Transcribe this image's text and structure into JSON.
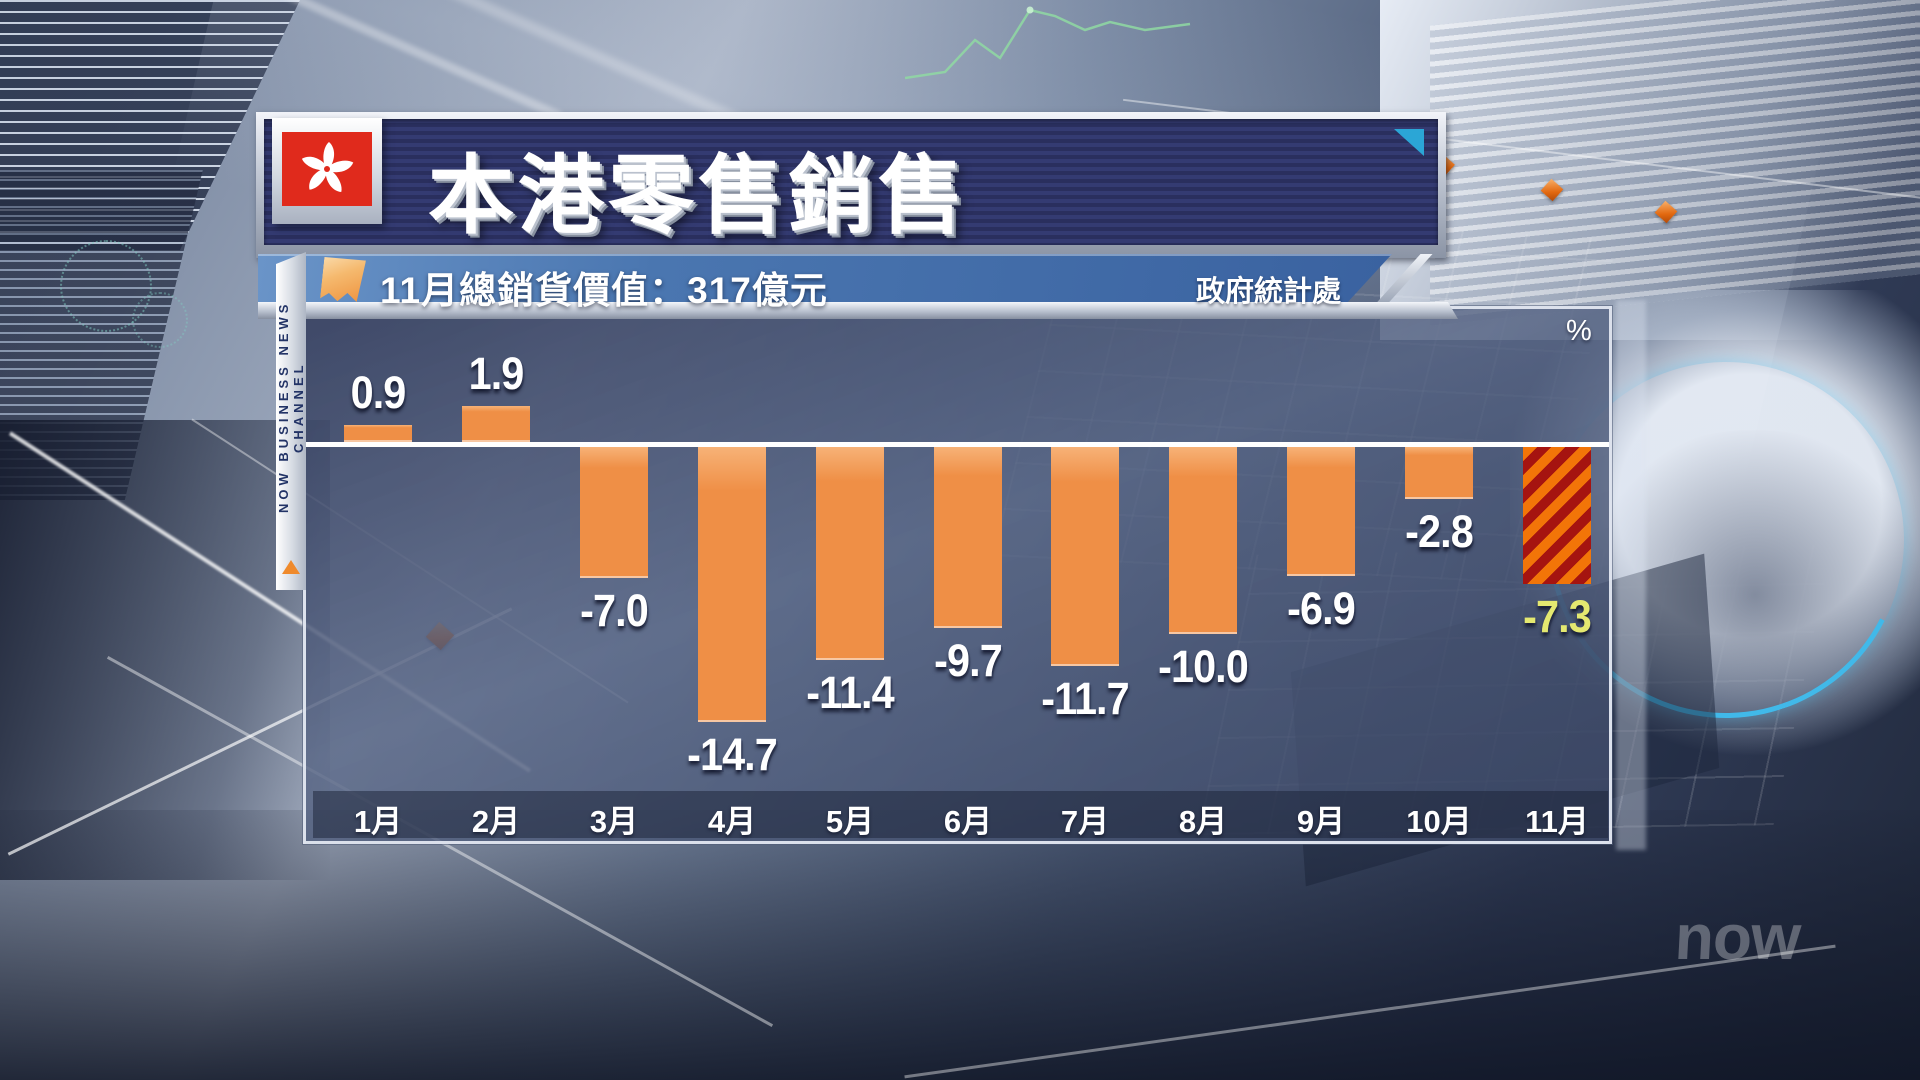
{
  "header": {
    "title": "本港零售銷售"
  },
  "subheader": {
    "highlight_text": "11月總銷貨價值：317億元",
    "source": "政府統計處"
  },
  "sidebar": {
    "channel_label": "NOW BUSINESS NEWS CHANNEL"
  },
  "watermark": {
    "logo_text": "now"
  },
  "chart_data": {
    "type": "bar",
    "title": "本港零售銷售",
    "unit_label": "%",
    "categories": [
      "1月",
      "2月",
      "3月",
      "4月",
      "5月",
      "6月",
      "7月",
      "8月",
      "9月",
      "10月",
      "11月"
    ],
    "values": [
      0.9,
      1.9,
      -7.0,
      -14.7,
      -11.4,
      -9.7,
      -11.7,
      -10.0,
      -6.9,
      -2.8,
      -7.3
    ],
    "highlight_index": 10,
    "ylim": [
      -16,
      3
    ],
    "grid": false,
    "legend": "none",
    "colors": {
      "bar": "#EF8F46",
      "bar_light": "#F7B277",
      "highlight_bg": "#F27508",
      "highlight_stripe": "#A51410",
      "highlight_label": "#E4E870",
      "label": "#FFFFFF",
      "zero_line": "#FFFFFF",
      "subbar_blue": "#4A76B0",
      "title_navy": "#2E3166",
      "flag_red": "#E02A1C",
      "corner_cyan": "#2BA6D6"
    }
  }
}
